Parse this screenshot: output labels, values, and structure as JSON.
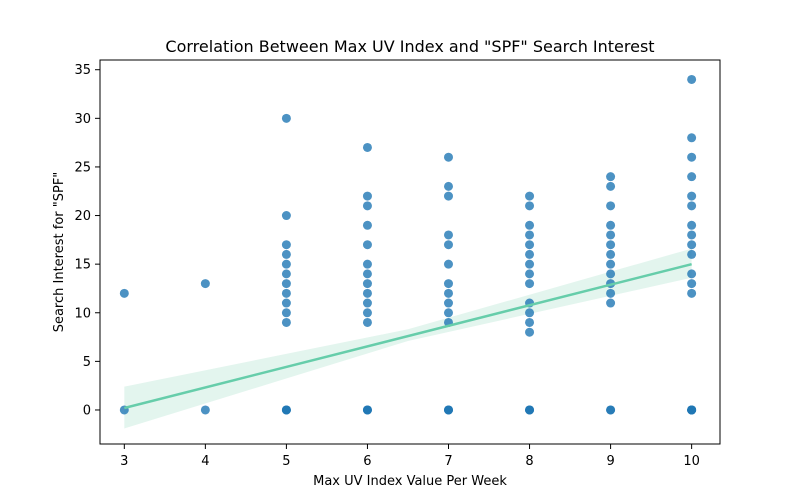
{
  "chart_data": {
    "type": "scatter",
    "title": "Correlation Between Max UV Index and \"SPF\" Search Interest",
    "xlabel": "Max UV Index Value Per Week",
    "ylabel": "Search Interest for \"SPF\"",
    "xlim": [
      2.7,
      10.35
    ],
    "ylim": [
      -3.5,
      36
    ],
    "xticks": [
      3,
      4,
      5,
      6,
      7,
      8,
      9,
      10
    ],
    "yticks": [
      0,
      5,
      10,
      15,
      20,
      25,
      30,
      35
    ],
    "grid": false,
    "point_color": "#1f77b4",
    "fit_color": "#66cdaa",
    "fit_band_color": "#e3f5ee",
    "series": [
      {
        "x": [
          3,
          3,
          4,
          4,
          5,
          5,
          5,
          5,
          5,
          5,
          5,
          5,
          5,
          5,
          5,
          5,
          5,
          5,
          6,
          6,
          6,
          6,
          6,
          6,
          6,
          6,
          6,
          6,
          6,
          6,
          6,
          6,
          6,
          7,
          7,
          7,
          7,
          7,
          7,
          7,
          7,
          7,
          7,
          7,
          7,
          7,
          7,
          8,
          8,
          8,
          8,
          8,
          8,
          8,
          8,
          8,
          8,
          8,
          8,
          8,
          8,
          8,
          8,
          9,
          9,
          9,
          9,
          9,
          9,
          9,
          9,
          9,
          9,
          9,
          9,
          9,
          9,
          10,
          10,
          10,
          10,
          10,
          10,
          10,
          10,
          10,
          10,
          10,
          10,
          10,
          10,
          10,
          10,
          10,
          10
        ],
        "y": [
          12,
          0,
          13,
          0,
          30,
          20,
          17,
          16,
          15,
          14,
          13,
          12,
          11,
          10,
          9,
          0,
          0,
          0,
          27,
          22,
          21,
          19,
          17,
          15,
          14,
          13,
          12,
          11,
          10,
          9,
          0,
          0,
          0,
          26,
          23,
          22,
          18,
          17,
          15,
          13,
          12,
          11,
          10,
          9,
          0,
          0,
          0,
          22,
          21,
          19,
          18,
          17,
          16,
          15,
          14,
          13,
          11,
          10,
          9,
          8,
          0,
          0,
          0,
          24,
          23,
          21,
          19,
          18,
          17,
          16,
          15,
          14,
          13,
          12,
          11,
          0,
          0,
          34,
          28,
          26,
          24,
          22,
          21,
          19,
          18,
          17,
          16,
          14,
          13,
          12,
          0,
          0,
          0,
          0,
          0
        ]
      }
    ],
    "fit": {
      "x": [
        3,
        10
      ],
      "y": [
        0.2,
        15.0
      ]
    },
    "ci_band": {
      "x": [
        3,
        6.5,
        10
      ],
      "lower": [
        -1.9,
        7.1,
        13.6
      ],
      "upper": [
        2.4,
        8.3,
        16.6
      ]
    }
  }
}
